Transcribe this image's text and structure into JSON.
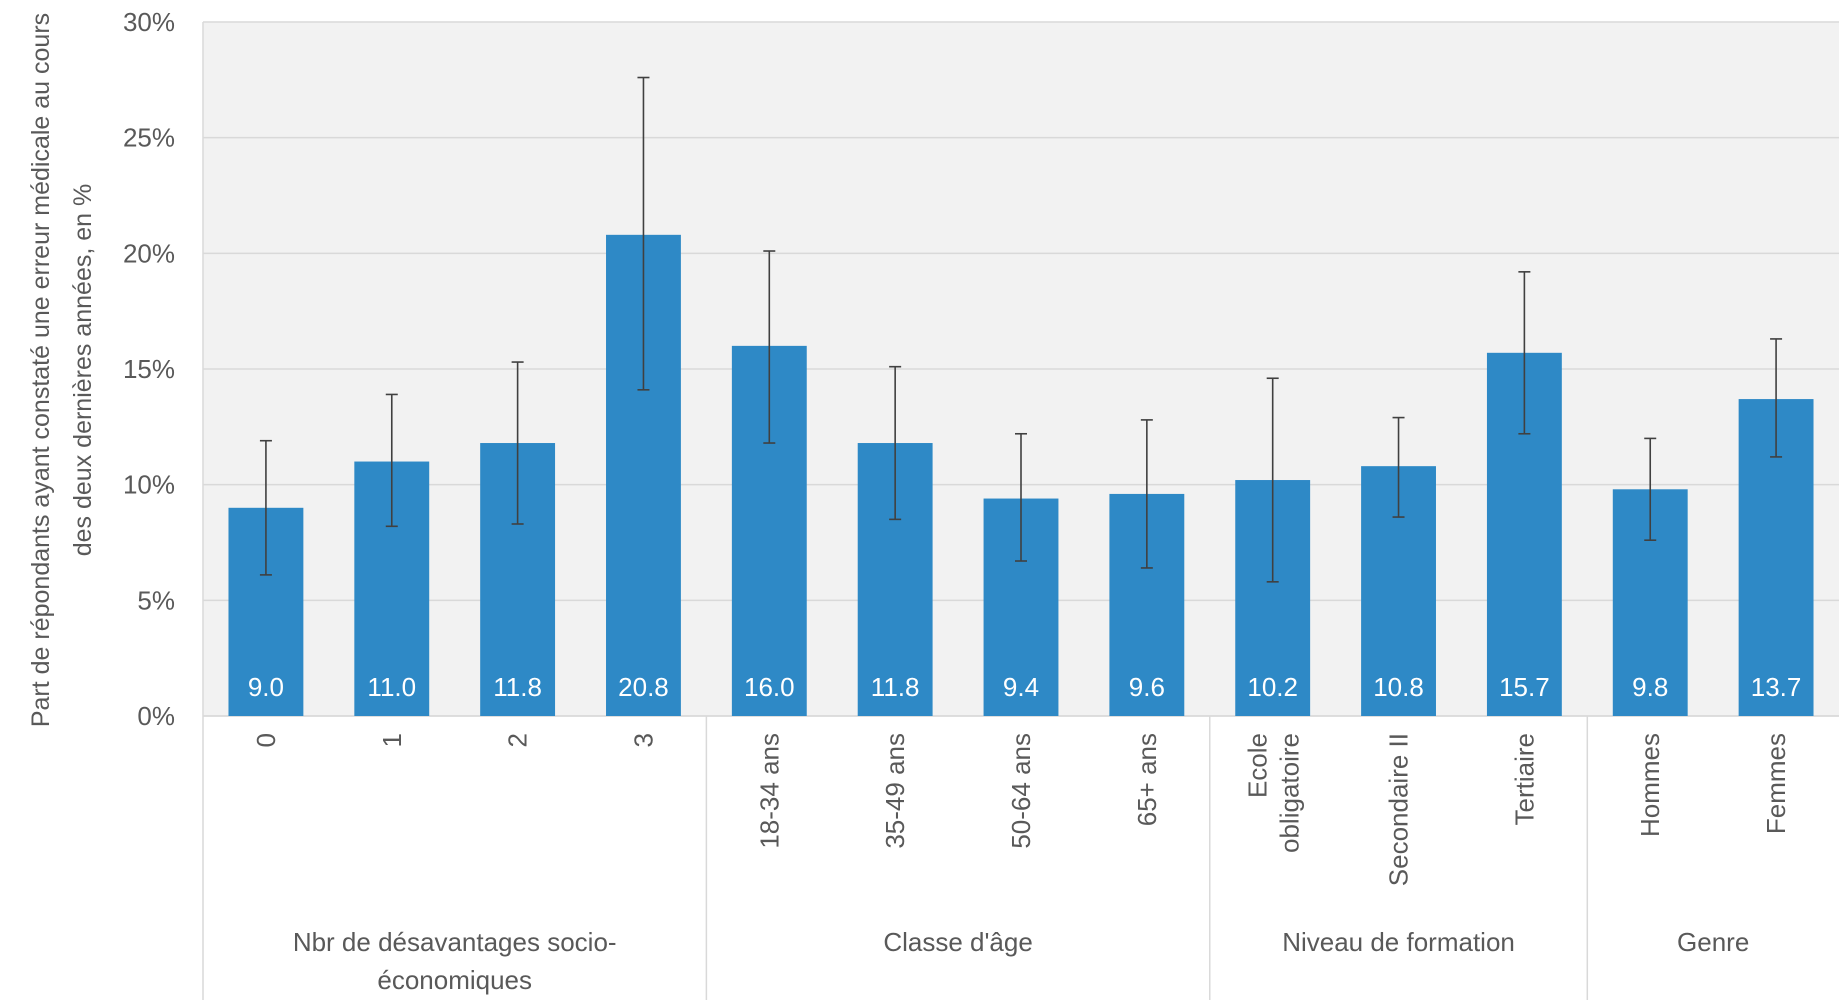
{
  "chart_data": {
    "type": "bar",
    "ylabel": "Part de répondants ayant constaté une erreur médicale au cours des deux dernières années, en %",
    "ylim": [
      0,
      30
    ],
    "yticks": [
      "0%",
      "5%",
      "10%",
      "15%",
      "20%",
      "25%",
      "30%"
    ],
    "grid": true,
    "colors": {
      "bar": "#2E89C6",
      "plot_bg": "#F2F2F2",
      "grid": "#D9D9D9",
      "error": "#404040",
      "text": "#595959",
      "label": "#FFFFFF"
    },
    "groups": [
      {
        "label": "Nbr de désavantages socio-économiques",
        "label_lines": [
          "Nbr de désavantages socio-",
          "économiques"
        ],
        "categories": [
          "0",
          "1",
          "2",
          "3"
        ]
      },
      {
        "label": "Classe d'âge",
        "label_lines": [
          "Classe d'âge"
        ],
        "categories": [
          "18-34 ans",
          "35-49 ans",
          "50-64 ans",
          "65+ ans"
        ]
      },
      {
        "label": "Niveau de formation",
        "label_lines": [
          "Niveau de formation"
        ],
        "categories": [
          "Ecole obligatoire",
          "Secondaire II",
          "Tertiaire"
        ]
      },
      {
        "label": "Genre",
        "label_lines": [
          "Genre"
        ],
        "categories": [
          "Hommes",
          "Femmes"
        ]
      }
    ],
    "categories": [
      "0",
      "1",
      "2",
      "3",
      "18-34 ans",
      "35-49 ans",
      "50-64 ans",
      "65+ ans",
      "Ecole obligatoire",
      "Secondaire II",
      "Tertiaire",
      "Hommes",
      "Femmes"
    ],
    "category_label_lines": [
      [
        "0"
      ],
      [
        "1"
      ],
      [
        "2"
      ],
      [
        "3"
      ],
      [
        "18-34 ans"
      ],
      [
        "35-49 ans"
      ],
      [
        "50-64 ans"
      ],
      [
        "65+ ans"
      ],
      [
        "Ecole",
        "obligatoire"
      ],
      [
        "Secondaire II"
      ],
      [
        "Tertiaire"
      ],
      [
        "Hommes"
      ],
      [
        "Femmes"
      ]
    ],
    "values": [
      9.0,
      11.0,
      11.8,
      20.8,
      16.0,
      11.8,
      9.4,
      9.6,
      10.2,
      10.8,
      15.7,
      9.8,
      13.7
    ],
    "value_labels": [
      "9.0",
      "11.0",
      "11.8",
      "20.8",
      "16.0",
      "11.8",
      "9.4",
      "9.6",
      "10.2",
      "10.8",
      "15.7",
      "9.8",
      "13.7"
    ],
    "error_low": [
      6.1,
      8.2,
      8.3,
      14.1,
      11.8,
      8.5,
      6.7,
      6.4,
      5.8,
      8.6,
      12.2,
      7.6,
      11.2
    ],
    "error_high": [
      11.9,
      13.9,
      15.3,
      27.6,
      20.1,
      15.1,
      12.2,
      12.8,
      14.6,
      12.9,
      19.2,
      12.0,
      16.3
    ]
  }
}
